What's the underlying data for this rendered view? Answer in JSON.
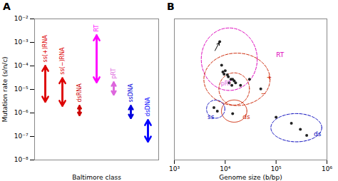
{
  "chart_data": [
    {
      "type": "range_arrows",
      "title": "A",
      "xlabel": "Baltimore class",
      "ylabel": "Mutation rate (s/n/c)",
      "log": "y",
      "tick_labels": "y",
      "categories": [
        "ss(+)RNA",
        "ss(−)RNA",
        "dsRNA",
        "RT",
        "pRT",
        "ssDNA",
        "dsDNA"
      ],
      "low": [
        3e-06,
        2e-06,
        8e-07,
        2e-05,
        6e-06,
        6e-07,
        6e-08
      ],
      "high": [
        0.0001,
        3e-05,
        2e-06,
        0.002,
        2e-05,
        2e-06,
        5e-07
      ],
      "colors": [
        "#dd0000",
        "#dd0000",
        "#cc0000",
        "#ff00ff",
        "#dd66dd",
        "#0000dd",
        "#0000ff"
      ],
      "ylim": [
        1e-08,
        0.01
      ],
      "yticks": [
        {
          "value": 1e-08,
          "label": "10⁻⁸"
        },
        {
          "value": 1e-07,
          "label": "10⁻⁷"
        },
        {
          "value": 1e-06,
          "label": "10⁻⁶"
        },
        {
          "value": 1e-05,
          "label": "10⁻⁵"
        },
        {
          "value": 0.0001,
          "label": "10⁻⁴"
        },
        {
          "value": 0.001,
          "label": "10⁻³"
        },
        {
          "value": 0.01,
          "label": "10⁻²"
        }
      ],
      "grid": false
    },
    {
      "type": "scatter",
      "title": "B",
      "xlabel": "Genome size (b/bp)",
      "log": true,
      "tick_labels": "x",
      "x": [
        7800,
        8500,
        9000,
        9500,
        10000,
        11000,
        11500,
        13000,
        14000,
        15000,
        12000,
        13500,
        16000,
        20000,
        30000,
        50000,
        6000,
        7000,
        14000,
        100000,
        200000,
        300000,
        400000
      ],
      "values": [
        0.0022,
        0.00015,
        7e-05,
        5.5e-05,
        8e-05,
        5e-05,
        4e-05,
        3e-05,
        3e-05,
        2.5e-05,
        2e-05,
        1.5e-05,
        2e-05,
        1.5e-05,
        3e-05,
        1e-05,
        1.2e-06,
        8e-07,
        6e-07,
        4e-07,
        2e-07,
        1e-07,
        5e-08
      ],
      "color": "#222222",
      "xlim": [
        1000,
        1000000
      ],
      "xticks": [
        {
          "value": 1000,
          "label": "10³"
        },
        {
          "value": 10000,
          "label": "10⁴"
        },
        {
          "value": 100000,
          "label": "10⁵"
        },
        {
          "value": 1000000,
          "label": "10⁶"
        }
      ],
      "ylim": [
        3e-09,
        0.03
      ],
      "yticks": [],
      "grid": false,
      "ellipses": [
        {
          "cx": 12000.0,
          "cy": 0.0003,
          "rx_log": 0.55,
          "ry_log": 1.55,
          "color": "#dd00bb",
          "line_style": "dashed",
          "label": "RT",
          "lx": 100000.0,
          "ly": 0.0005
        },
        {
          "cx": 17000.0,
          "cy": 3e-05,
          "rx_log": 0.65,
          "ry_log": 1.3,
          "color": "#cc2200",
          "line_style": "dashed",
          "label": "+",
          "lx": 65000.0,
          "ly": 4e-05
        },
        {
          "cx": 15000.0,
          "cy": 1e-05,
          "rx_log": 0.3,
          "ry_log": 0.8,
          "color": "#cc2200",
          "line_style": "dashed",
          "label": "−",
          "lx": 50000.0,
          "ly": 6e-06
        },
        {
          "cx": 15000.0,
          "cy": 8e-07,
          "rx_log": 0.25,
          "ry_log": 0.55,
          "color": "#cc2200",
          "line_style": "solid",
          "label": "ds",
          "lx": 22000.0,
          "ly": 4e-07
        },
        {
          "cx": 6500,
          "cy": 1e-06,
          "rx_log": 0.18,
          "ry_log": 0.45,
          "color": "#0000bb",
          "line_style": "dashed",
          "label": "ss",
          "lx": 4500,
          "ly": 4e-07
        },
        {
          "cx": 250000.0,
          "cy": 1.2e-07,
          "rx_log": 0.5,
          "ry_log": 0.7,
          "color": "#0000bb",
          "line_style": "dashed",
          "label": "ds",
          "lx": 550000.0,
          "ly": 6e-08
        }
      ],
      "annotations": [
        {
          "text": "pRT",
          "x": 8200,
          "y": 1.8e-05,
          "color": "#dd66dd"
        }
      ],
      "arrow": {
        "x1": 6300,
        "y1": 0.0008,
        "x2": 7600,
        "y2": 0.002,
        "color": "#000000"
      }
    }
  ]
}
